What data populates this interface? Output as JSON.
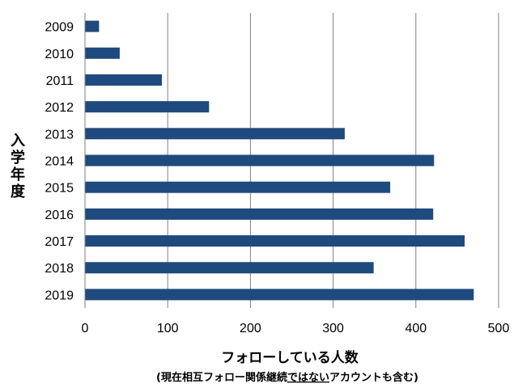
{
  "chart_data": {
    "type": "bar",
    "orientation": "horizontal",
    "categories": [
      "2009",
      "2010",
      "2011",
      "2012",
      "2013",
      "2014",
      "2015",
      "2016",
      "2017",
      "2018",
      "2019"
    ],
    "values": [
      17,
      42,
      93,
      150,
      314,
      422,
      369,
      421,
      459,
      349,
      470
    ],
    "xlim": [
      0,
      500
    ],
    "xticks": [
      "0",
      "100",
      "200",
      "300",
      "400",
      "500"
    ],
    "ylabel_chars": [
      "入",
      "学",
      "年",
      "度"
    ],
    "xlabel": "フォローしている人数",
    "xlabel_sub": {
      "before": "(現在相互フォロー関係継続",
      "underlined": "ではない",
      "after": "アカウントも含む)"
    },
    "grid": "vertical",
    "bar_color": "#1f4a7e"
  }
}
